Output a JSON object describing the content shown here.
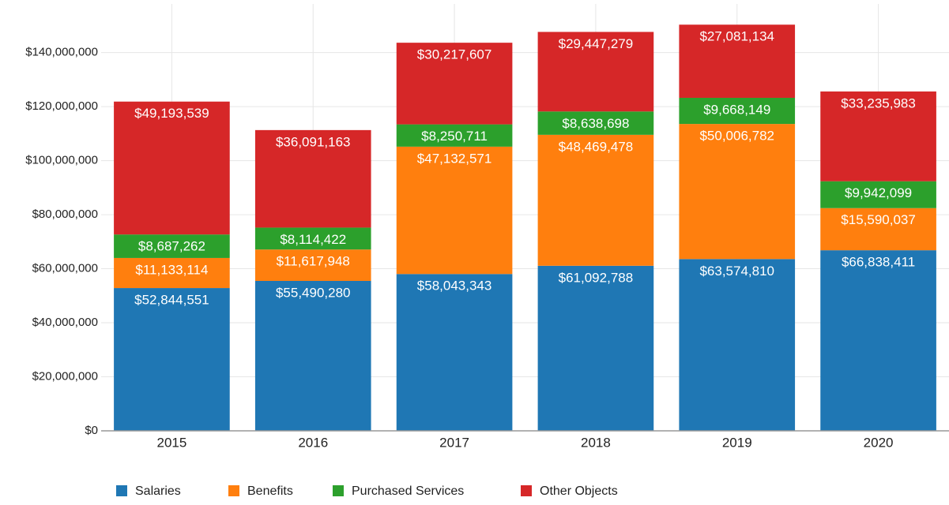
{
  "chart_data": {
    "type": "stacked_bar",
    "categories": [
      "2015",
      "2016",
      "2017",
      "2018",
      "2019",
      "2020"
    ],
    "series": [
      {
        "name": "Salaries",
        "color": "#1f77b4",
        "values": [
          52844551,
          55490280,
          58043343,
          61092788,
          63574810,
          66838411
        ],
        "value_labels": [
          "$52,844,551",
          "$55,490,280",
          "$58,043,343",
          "$61,092,788",
          "$63,574,810",
          "$66,838,411"
        ]
      },
      {
        "name": "Benefits",
        "color": "#ff7f0e",
        "values": [
          11133114,
          11617948,
          47132571,
          48469478,
          50006782,
          15590037
        ],
        "value_labels": [
          "$11,133,114",
          "$11,617,948",
          "$47,132,571",
          "$48,469,478",
          "$50,006,782",
          "$15,590,037"
        ]
      },
      {
        "name": "Purchased Services",
        "color": "#2ca02c",
        "values": [
          8687262,
          8114422,
          8250711,
          8638698,
          9668149,
          9942099
        ],
        "value_labels": [
          "$8,687,262",
          "$8,114,422",
          "$8,250,711",
          "$8,638,698",
          "$9,668,149",
          "$9,942,099"
        ]
      },
      {
        "name": "Other Objects",
        "color": "#d62728",
        "values": [
          49193539,
          36091163,
          30217607,
          29447279,
          27081134,
          33235983
        ],
        "value_labels": [
          "$49,193,539",
          "$36,091,163",
          "$30,217,607",
          "$29,447,279",
          "$27,081,134",
          "$33,235,983"
        ]
      }
    ],
    "ylim": [
      0,
      158000000
    ],
    "yticks": [
      {
        "value": 0,
        "label": "$0"
      },
      {
        "value": 20000000,
        "label": "$20,000,000"
      },
      {
        "value": 40000000,
        "label": "$40,000,000"
      },
      {
        "value": 60000000,
        "label": "$60,000,000"
      },
      {
        "value": 80000000,
        "label": "$80,000,000"
      },
      {
        "value": 100000000,
        "label": "$100,000,000"
      },
      {
        "value": 120000000,
        "label": "$120,000,000"
      },
      {
        "value": 140000000,
        "label": "$140,000,000"
      }
    ],
    "grid": true,
    "legend": "bottom"
  }
}
